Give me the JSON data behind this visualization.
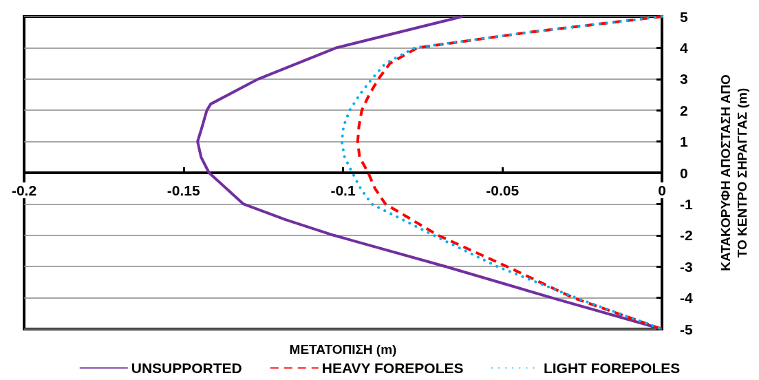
{
  "chart_data": {
    "type": "line",
    "xlabel": "ΜΕΤΑΤΟΠΙΣΗ (m)",
    "ylabel": "ΚΑΤΑΚΟΡΥΦΗ ΑΠΟΣΤΑΣΗ ΑΠΟ ΤΟ ΚΕΝΤΡΟ ΣΗΡΑΓΓΑΣ (m)",
    "xlim": [
      -0.2,
      0
    ],
    "xticks": [
      -0.2,
      -0.15,
      -0.1,
      -0.05,
      0
    ],
    "ylim": [
      -5,
      5
    ],
    "yticks": [
      -5,
      -4,
      -3,
      -2,
      -1,
      0,
      1,
      2,
      3,
      4,
      5
    ],
    "grid": "y",
    "legend": "bottom",
    "marker": "none",
    "series": [
      {
        "name": "UNSUPPORTED",
        "color": "#7030a0",
        "line_style": "solid",
        "x": [
          -0.0626,
          -0.1021,
          -0.1266,
          -0.1415,
          -0.1427,
          -0.1441,
          -0.1456,
          -0.1445,
          -0.142,
          -0.1312,
          -0.118,
          -0.1029,
          -0.0678,
          -0.0345,
          0
        ],
        "values": [
          5,
          4,
          3,
          2.2,
          2,
          1.5,
          1,
          0.5,
          0,
          -1,
          -1.5,
          -2,
          -3,
          -4,
          -5
        ]
      },
      {
        "name": "HEAVY FOREPOLES",
        "color": "#ff0000",
        "line_style": "dashed",
        "x": [
          0,
          -0.0414,
          -0.0767,
          -0.0853,
          -0.0889,
          -0.0918,
          -0.0941,
          -0.095,
          -0.0954,
          -0.0948,
          -0.0921,
          -0.09,
          -0.0867,
          -0.0702,
          -0.0486,
          -0.0278,
          0
        ],
        "values": [
          5,
          4.5,
          4,
          3.5,
          3,
          2.5,
          2,
          1.5,
          1,
          0.5,
          0,
          -0.5,
          -1,
          -2,
          -3,
          -4,
          -5
        ]
      },
      {
        "name": "LIGHT FOREPOLES",
        "color": "#00b0f0",
        "line_style": "dotted",
        "x": [
          0,
          -0.0414,
          -0.0775,
          -0.0867,
          -0.091,
          -0.0948,
          -0.0979,
          -0.0998,
          -0.1004,
          -0.0995,
          -0.0971,
          -0.0945,
          -0.091,
          -0.0716,
          -0.0516,
          -0.027,
          0
        ],
        "values": [
          5,
          4.5,
          4,
          3.5,
          3,
          2.5,
          2,
          1.5,
          1,
          0.5,
          0,
          -0.5,
          -1,
          -2,
          -3,
          -4,
          -5
        ]
      }
    ]
  }
}
